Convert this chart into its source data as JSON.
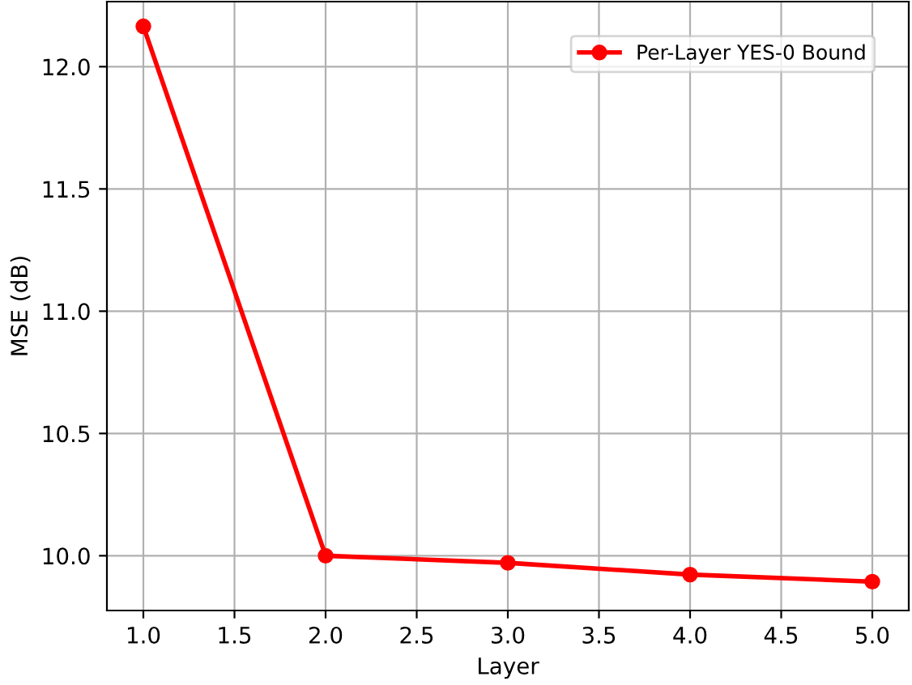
{
  "chart_data": {
    "type": "line",
    "xlabel": "Layer",
    "ylabel": "MSE (dB)",
    "x": [
      1,
      2,
      3,
      4,
      5
    ],
    "series": [
      {
        "name": "Per-Layer YES-0 Bound",
        "color": "#ff0000",
        "values": [
          12.165,
          10.0,
          9.971,
          9.923,
          9.894
        ]
      }
    ],
    "xlim": [
      0.8,
      5.2
    ],
    "xticks": [
      {
        "value": 1,
        "label": "1.0"
      },
      {
        "value": 1.5,
        "label": "1.5"
      },
      {
        "value": 2,
        "label": "2.0"
      },
      {
        "value": 2.5,
        "label": "2.5"
      },
      {
        "value": 3,
        "label": "3.0"
      },
      {
        "value": 3.5,
        "label": "3.5"
      },
      {
        "value": 4,
        "label": "4.0"
      },
      {
        "value": 4.5,
        "label": "4.5"
      },
      {
        "value": 5,
        "label": "5.0"
      }
    ],
    "ylim": [
      9.776,
      12.266
    ],
    "yticks": [
      {
        "value": 10,
        "label": "10.0"
      },
      {
        "value": 10.5,
        "label": "10.5"
      },
      {
        "value": 11,
        "label": "11.0"
      },
      {
        "value": 11.5,
        "label": "11.5"
      },
      {
        "value": 12,
        "label": "12.0"
      }
    ],
    "grid": true,
    "legend": "top right",
    "marker": "circle",
    "line_style": "solid"
  }
}
